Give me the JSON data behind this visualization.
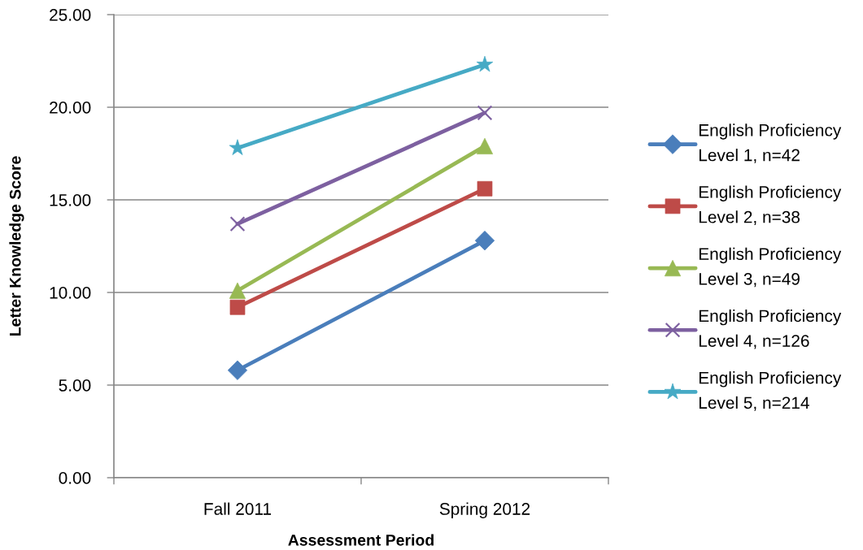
{
  "chart_data": {
    "type": "line",
    "xlabel": "Assessment Period",
    "ylabel": "Letter Knowledge Score",
    "categories": [
      "Fall 2011",
      "Spring 2012"
    ],
    "series": [
      {
        "name": "English Proficiency\nLevel 1, n=42",
        "color": "#4a7ebb",
        "marker": "diamond",
        "values": [
          5.8,
          12.8
        ]
      },
      {
        "name": "English Proficiency\nLevel 2, n=38",
        "color": "#be4b48",
        "marker": "square",
        "values": [
          9.2,
          15.6
        ]
      },
      {
        "name": "English Proficiency\nLevel 3, n=49",
        "color": "#98b954",
        "marker": "triangle",
        "values": [
          10.1,
          17.9
        ]
      },
      {
        "name": "English Proficiency\nLevel 4, n=126",
        "color": "#7d60a0",
        "marker": "cross",
        "values": [
          13.7,
          19.7
        ]
      },
      {
        "name": "English Proficiency\nLevel 5, n=214",
        "color": "#46aac5",
        "marker": "star",
        "values": [
          17.8,
          22.3
        ]
      }
    ],
    "ylim": [
      0,
      25
    ],
    "yticks": [
      {
        "value": 0,
        "label": "0.00"
      },
      {
        "value": 5,
        "label": "5.00"
      },
      {
        "value": 10,
        "label": "10.00"
      },
      {
        "value": 15,
        "label": "15.00"
      },
      {
        "value": 20,
        "label": "20.00"
      },
      {
        "value": 25,
        "label": "25.00"
      }
    ],
    "grid": "y",
    "legend": "right",
    "line_style": "solid"
  }
}
